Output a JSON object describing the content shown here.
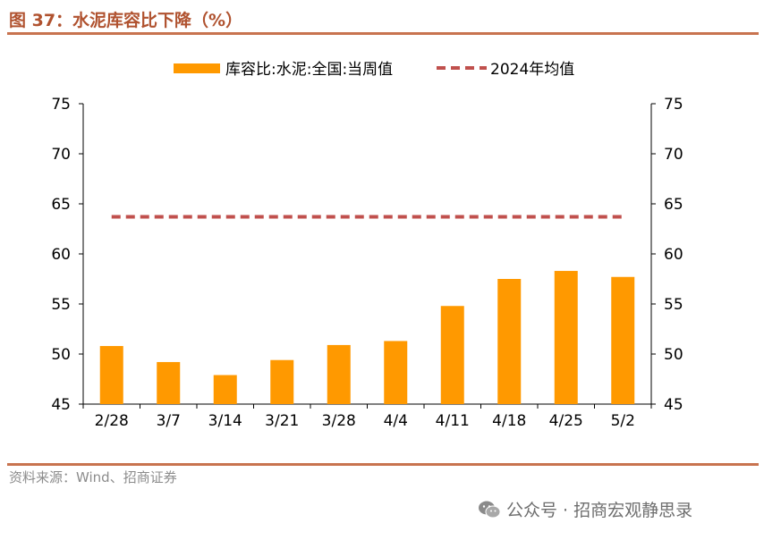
{
  "header": {
    "title": "图 37：水泥库容比下降（%）"
  },
  "footer": {
    "source": "资料来源：Wind、招商证券",
    "watermark": "公众号 · 招商宏观静思录"
  },
  "colors": {
    "bar": "#ff9900",
    "avg_line": "#c0504d",
    "accent": "#c8734f"
  },
  "chart_data": {
    "type": "bar",
    "title": "",
    "categories": [
      "2/28",
      "3/7",
      "3/14",
      "3/21",
      "3/28",
      "4/4",
      "4/11",
      "4/18",
      "4/25",
      "5/2"
    ],
    "series": [
      {
        "name": "库容比:水泥:全国:当周值",
        "type": "bar",
        "values": [
          50.8,
          49.2,
          47.9,
          49.4,
          50.9,
          51.3,
          54.8,
          57.5,
          58.3,
          57.7
        ]
      },
      {
        "name": "2024年均值",
        "type": "line-dashed",
        "values": [
          63.7,
          63.7,
          63.7,
          63.7,
          63.7,
          63.7,
          63.7,
          63.7,
          63.7,
          63.7
        ]
      }
    ],
    "ylim": [
      45,
      75
    ],
    "yticks": [
      45,
      50,
      55,
      60,
      65,
      70,
      75
    ],
    "y2lim": [
      45,
      75
    ],
    "legend_position": "top",
    "grid": false
  }
}
